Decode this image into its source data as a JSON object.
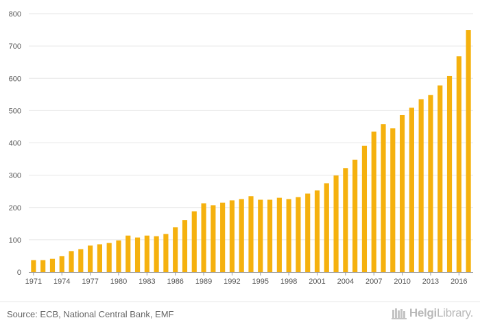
{
  "chart_data": {
    "type": "bar",
    "title": "",
    "xlabel": "",
    "ylabel": "",
    "ylim": [
      0,
      800
    ],
    "yticks": [
      0,
      100,
      200,
      300,
      400,
      500,
      600,
      700,
      800
    ],
    "grid": true,
    "bar_color": "#f5b10e",
    "categories": [
      "1971",
      "1972",
      "1973",
      "1974",
      "1975",
      "1976",
      "1977",
      "1978",
      "1979",
      "1980",
      "1981",
      "1982",
      "1983",
      "1984",
      "1985",
      "1986",
      "1987",
      "1988",
      "1989",
      "1990",
      "1991",
      "1992",
      "1993",
      "1994",
      "1995",
      "1996",
      "1997",
      "1998",
      "1999",
      "2000",
      "2001",
      "2002",
      "2003",
      "2004",
      "2005",
      "2006",
      "2007",
      "2008",
      "2009",
      "2010",
      "2011",
      "2012",
      "2013",
      "2014",
      "2015",
      "2016",
      "2017"
    ],
    "x_tick_labels": [
      "1971",
      "1974",
      "1977",
      "1980",
      "1983",
      "1986",
      "1989",
      "1992",
      "1995",
      "1998",
      "2001",
      "2004",
      "2007",
      "2010",
      "2013",
      "2016"
    ],
    "values": [
      37,
      37,
      41,
      49,
      65,
      71,
      82,
      86,
      90,
      98,
      113,
      107,
      113,
      111,
      118,
      139,
      161,
      188,
      213,
      207,
      215,
      222,
      226,
      235,
      224,
      224,
      230,
      226,
      232,
      243,
      253,
      275,
      299,
      322,
      348,
      391,
      435,
      458,
      445,
      486,
      509,
      535,
      548,
      578,
      607,
      668,
      749
    ]
  },
  "footer": {
    "source": "Source: ECB, National Central Bank, EMF",
    "brand_prefix": "Helgi",
    "brand_suffix": "Library."
  }
}
